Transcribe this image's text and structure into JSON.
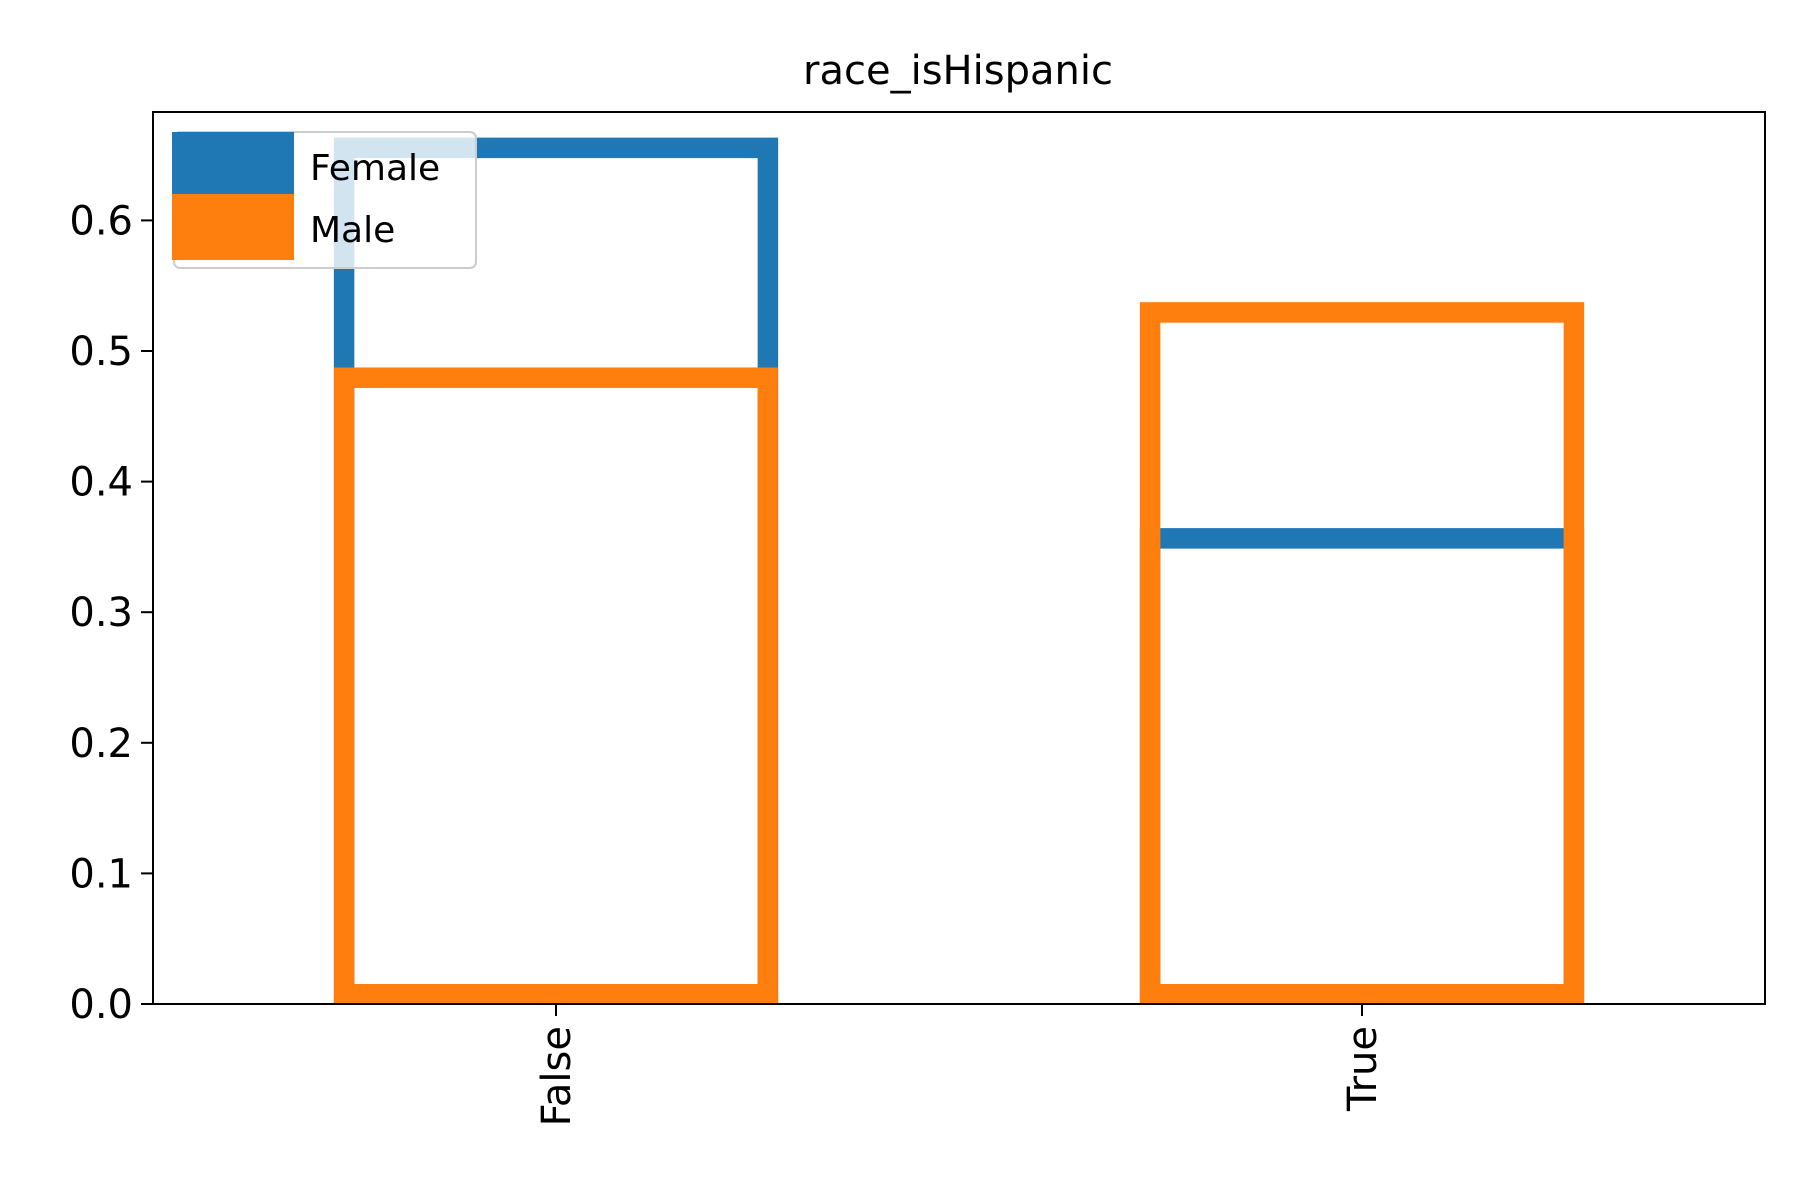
{
  "chart_data": {
    "type": "bar",
    "title": "race_isHispanic",
    "xlabel": "",
    "ylabel": "",
    "categories": [
      "False",
      "True"
    ],
    "series": [
      {
        "name": "Female",
        "color": "#1f77b4",
        "values": [
          0.663,
          0.364
        ]
      },
      {
        "name": "Male",
        "color": "#ff7f0e",
        "values": [
          0.487,
          0.537
        ]
      }
    ],
    "ylim": [
      0,
      0.683
    ],
    "yticks": [
      "0.0",
      "0.1",
      "0.2",
      "0.3",
      "0.4",
      "0.5",
      "0.6"
    ],
    "grid": false,
    "legend_position": "top-left",
    "bar_style": "unfilled outline"
  }
}
